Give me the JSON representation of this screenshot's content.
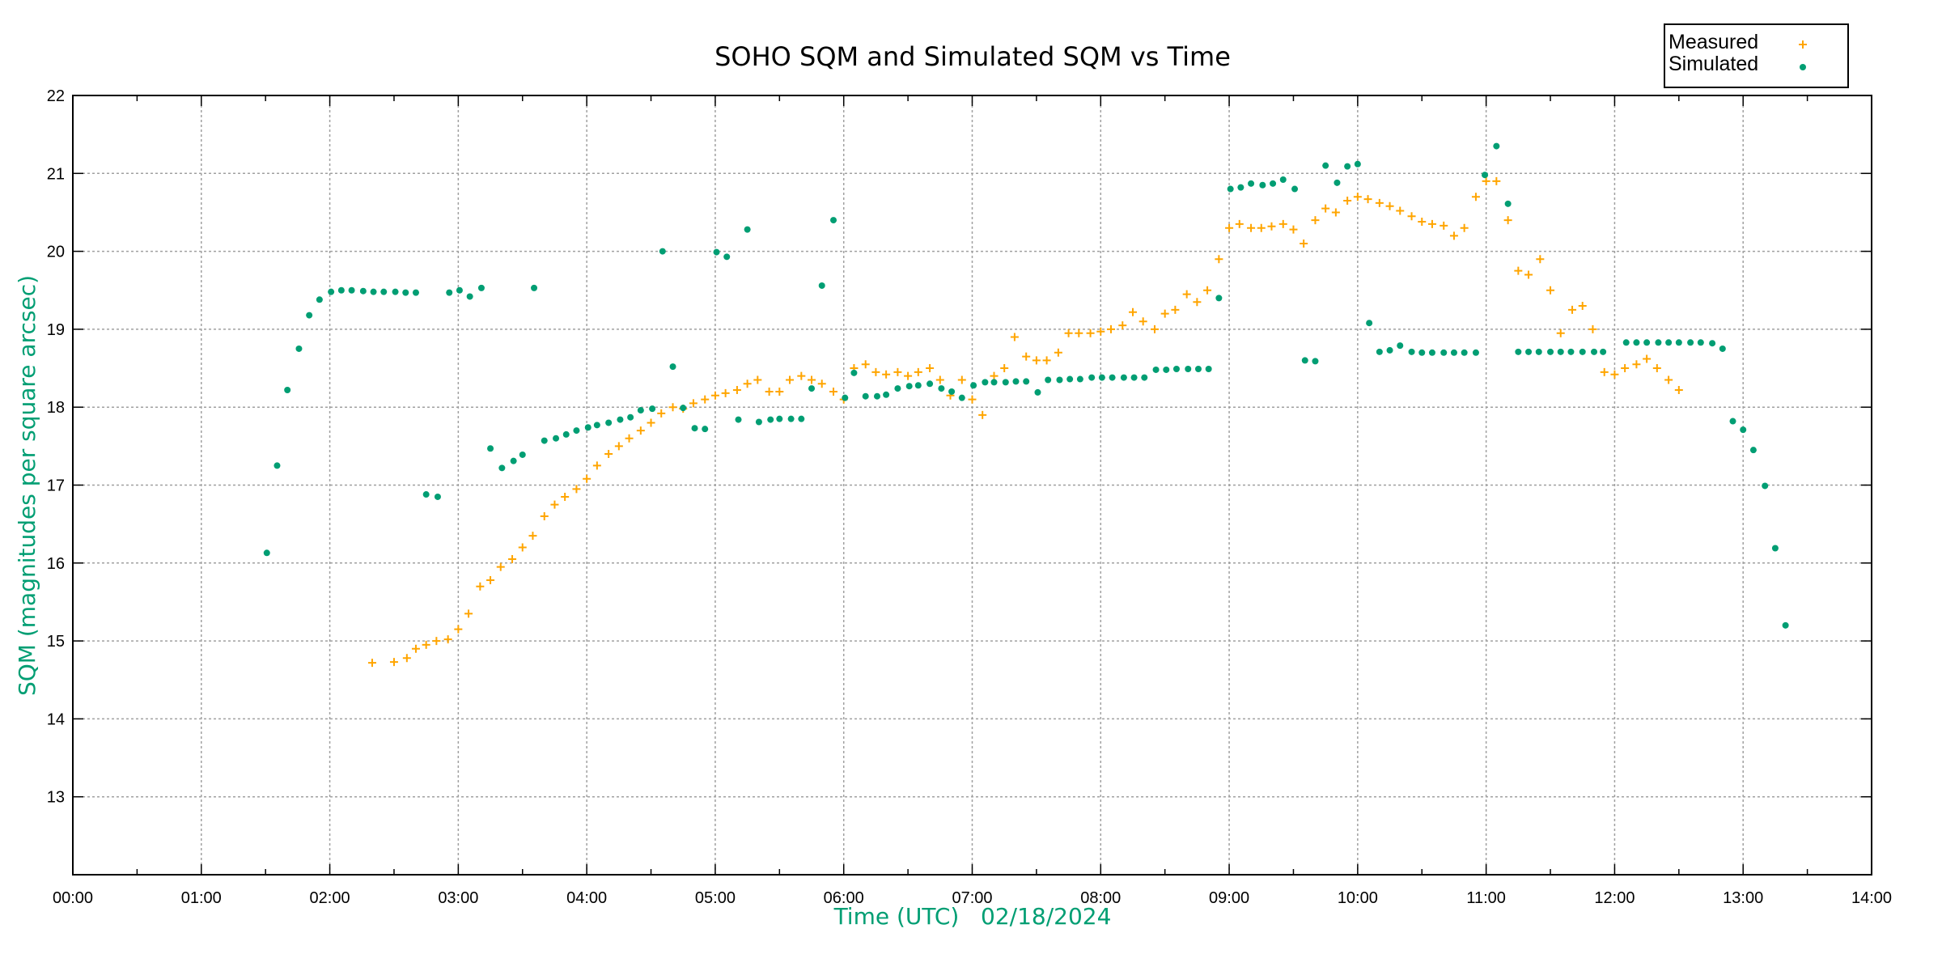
{
  "chart_data": {
    "type": "scatter",
    "title": "SOHO SQM and Simulated SQM vs Time",
    "xlabel": "Time (UTC)   02/18/2024",
    "ylabel": "SQM (magnitudes per square arcsec)",
    "xlim": [
      0,
      14
    ],
    "ylim": [
      12,
      22
    ],
    "x_unit": "hours UTC",
    "x_ticks": [
      "00:00",
      "01:00",
      "02:00",
      "03:00",
      "04:00",
      "05:00",
      "06:00",
      "07:00",
      "08:00",
      "09:00",
      "10:00",
      "11:00",
      "12:00",
      "13:00",
      "14:00"
    ],
    "y_ticks": [
      "13",
      "14",
      "15",
      "16",
      "17",
      "18",
      "19",
      "20",
      "21",
      "22"
    ],
    "grid": true,
    "legend_placement": "top-right outside",
    "axis_label_color": "#009e73",
    "series": [
      {
        "name": "Measured",
        "marker": "plus",
        "color": "#ffa500",
        "x": [
          2.33,
          2.5,
          2.6,
          2.67,
          2.75,
          2.83,
          2.92,
          3.0,
          3.08,
          3.17,
          3.25,
          3.33,
          3.42,
          3.5,
          3.58,
          3.67,
          3.75,
          3.83,
          3.92,
          4.0,
          4.08,
          4.17,
          4.25,
          4.33,
          4.42,
          4.5,
          4.58,
          4.67,
          4.75,
          4.83,
          4.92,
          5.0,
          5.08,
          5.17,
          5.25,
          5.33,
          5.42,
          5.5,
          5.58,
          5.67,
          5.75,
          5.83,
          5.92,
          6.0,
          6.08,
          6.17,
          6.25,
          6.33,
          6.42,
          6.5,
          6.58,
          6.67,
          6.75,
          6.83,
          6.92,
          7.0,
          7.08,
          7.17,
          7.25,
          7.33,
          7.42,
          7.5,
          7.58,
          7.67,
          7.75,
          7.83,
          7.92,
          8.0,
          8.08,
          8.17,
          8.25,
          8.33,
          8.42,
          8.5,
          8.58,
          8.67,
          8.75,
          8.83,
          8.92,
          9.0,
          9.08,
          9.17,
          9.25,
          9.33,
          9.42,
          9.5,
          9.58,
          9.67,
          9.75,
          9.83,
          9.92,
          10.0,
          10.08,
          10.17,
          10.25,
          10.33,
          10.42,
          10.5,
          10.58,
          10.67,
          10.75,
          10.83,
          10.92,
          11.0,
          11.08,
          11.17,
          11.25,
          11.33,
          11.42,
          11.5,
          11.58,
          11.67,
          11.75,
          11.83,
          11.92,
          12.0,
          12.08,
          12.17,
          12.25,
          12.33,
          12.42,
          12.5
        ],
        "y": [
          14.72,
          14.73,
          14.78,
          14.9,
          14.95,
          15.0,
          15.02,
          15.15,
          15.35,
          15.7,
          15.78,
          15.95,
          16.05,
          16.2,
          16.35,
          16.6,
          16.75,
          16.85,
          16.95,
          17.08,
          17.25,
          17.4,
          17.5,
          17.6,
          17.7,
          17.8,
          17.92,
          18.0,
          17.98,
          18.05,
          18.1,
          18.15,
          18.18,
          18.22,
          18.3,
          18.35,
          18.2,
          18.2,
          18.35,
          18.4,
          18.35,
          18.3,
          18.2,
          18.1,
          18.5,
          18.55,
          18.45,
          18.42,
          18.45,
          18.4,
          18.45,
          18.5,
          18.35,
          18.15,
          18.35,
          18.1,
          17.9,
          18.4,
          18.5,
          18.9,
          18.65,
          18.6,
          18.6,
          18.7,
          18.95,
          18.95,
          18.95,
          18.97,
          19.0,
          19.05,
          19.22,
          19.1,
          19.0,
          19.2,
          19.25,
          19.45,
          19.35,
          19.5,
          19.9,
          20.3,
          20.35,
          20.3,
          20.3,
          20.32,
          20.35,
          20.28,
          20.1,
          20.4,
          20.55,
          20.5,
          20.65,
          20.7,
          20.67,
          20.62,
          20.58,
          20.52,
          20.45,
          20.38,
          20.35,
          20.33,
          20.2,
          20.3,
          20.7,
          20.9,
          20.9,
          20.4,
          19.75,
          19.7,
          19.9,
          19.5,
          18.95,
          19.25,
          19.3,
          19.0,
          18.45,
          18.42,
          18.5,
          18.55,
          18.62,
          18.5,
          18.35,
          18.22
        ]
      },
      {
        "name": "Simulated",
        "marker": "dot",
        "color": "#009e73",
        "x": [
          1.51,
          1.59,
          1.67,
          1.76,
          1.84,
          1.92,
          2.01,
          2.09,
          2.17,
          2.26,
          2.34,
          2.42,
          2.51,
          2.59,
          2.67,
          2.75,
          2.84,
          2.93,
          3.01,
          3.09,
          3.18,
          3.25,
          3.34,
          3.43,
          3.5,
          3.59,
          3.67,
          3.76,
          3.84,
          3.92,
          4.01,
          4.08,
          4.17,
          4.26,
          4.34,
          4.42,
          4.51,
          4.59,
          4.67,
          4.75,
          4.84,
          4.92,
          5.01,
          5.09,
          5.18,
          5.25,
          5.34,
          5.43,
          5.5,
          5.59,
          5.67,
          5.75,
          5.83,
          5.92,
          6.01,
          6.08,
          6.17,
          6.26,
          6.33,
          6.42,
          6.51,
          6.58,
          6.67,
          6.76,
          6.84,
          6.92,
          7.01,
          7.1,
          7.17,
          7.26,
          7.34,
          7.42,
          7.51,
          7.59,
          7.68,
          7.76,
          7.84,
          7.93,
          8.01,
          8.09,
          8.18,
          8.26,
          8.34,
          8.43,
          8.51,
          8.59,
          8.68,
          8.76,
          8.84,
          8.92,
          9.01,
          9.09,
          9.17,
          9.26,
          9.34,
          9.42,
          9.51,
          9.59,
          9.67,
          9.75,
          9.84,
          9.92,
          10.0,
          10.09,
          10.17,
          10.25,
          10.33,
          10.42,
          10.5,
          10.58,
          10.67,
          10.75,
          10.83,
          10.92,
          10.99,
          11.08,
          11.17,
          11.25,
          11.33,
          11.41,
          11.5,
          11.58,
          11.66,
          11.75,
          11.84,
          11.91,
          12.09,
          12.17,
          12.25,
          12.34,
          12.42,
          12.5,
          12.59,
          12.67,
          12.76,
          12.84,
          12.92,
          13.0,
          13.08,
          13.17,
          13.25,
          13.33
        ],
        "y": [
          16.13,
          17.25,
          18.22,
          18.75,
          19.18,
          19.38,
          19.48,
          19.5,
          19.5,
          19.49,
          19.48,
          19.48,
          19.48,
          19.47,
          19.47,
          16.88,
          16.85,
          19.47,
          19.5,
          19.42,
          19.53,
          17.47,
          17.22,
          17.31,
          17.39,
          19.53,
          17.57,
          17.6,
          17.65,
          17.7,
          17.74,
          17.77,
          17.8,
          17.84,
          17.87,
          17.96,
          17.98,
          20.0,
          18.52,
          17.99,
          17.73,
          17.72,
          19.99,
          19.93,
          17.84,
          20.28,
          17.81,
          17.84,
          17.85,
          17.85,
          17.85,
          18.24,
          19.56,
          20.4,
          18.12,
          18.44,
          18.14,
          18.14,
          18.16,
          18.24,
          18.27,
          18.28,
          18.3,
          18.24,
          18.2,
          18.12,
          18.28,
          18.32,
          18.32,
          18.32,
          18.33,
          18.33,
          18.19,
          18.35,
          18.35,
          18.36,
          18.36,
          18.38,
          18.38,
          18.38,
          18.38,
          18.38,
          18.38,
          18.48,
          18.48,
          18.49,
          18.49,
          18.49,
          18.49,
          19.4,
          20.8,
          20.82,
          20.87,
          20.85,
          20.87,
          20.92,
          20.8,
          18.6,
          18.59,
          21.1,
          20.88,
          21.09,
          21.12,
          19.08,
          18.71,
          18.73,
          18.79,
          18.71,
          18.7,
          18.7,
          18.7,
          18.7,
          18.7,
          18.7,
          20.98,
          21.35,
          20.61,
          18.71,
          18.71,
          18.71,
          18.71,
          18.71,
          18.71,
          18.71,
          18.71,
          18.71,
          18.83,
          18.83,
          18.83,
          18.83,
          18.83,
          18.83,
          18.83,
          18.83,
          18.82,
          18.75,
          17.82,
          17.71,
          17.45,
          16.99,
          16.19,
          15.2
        ]
      }
    ]
  }
}
